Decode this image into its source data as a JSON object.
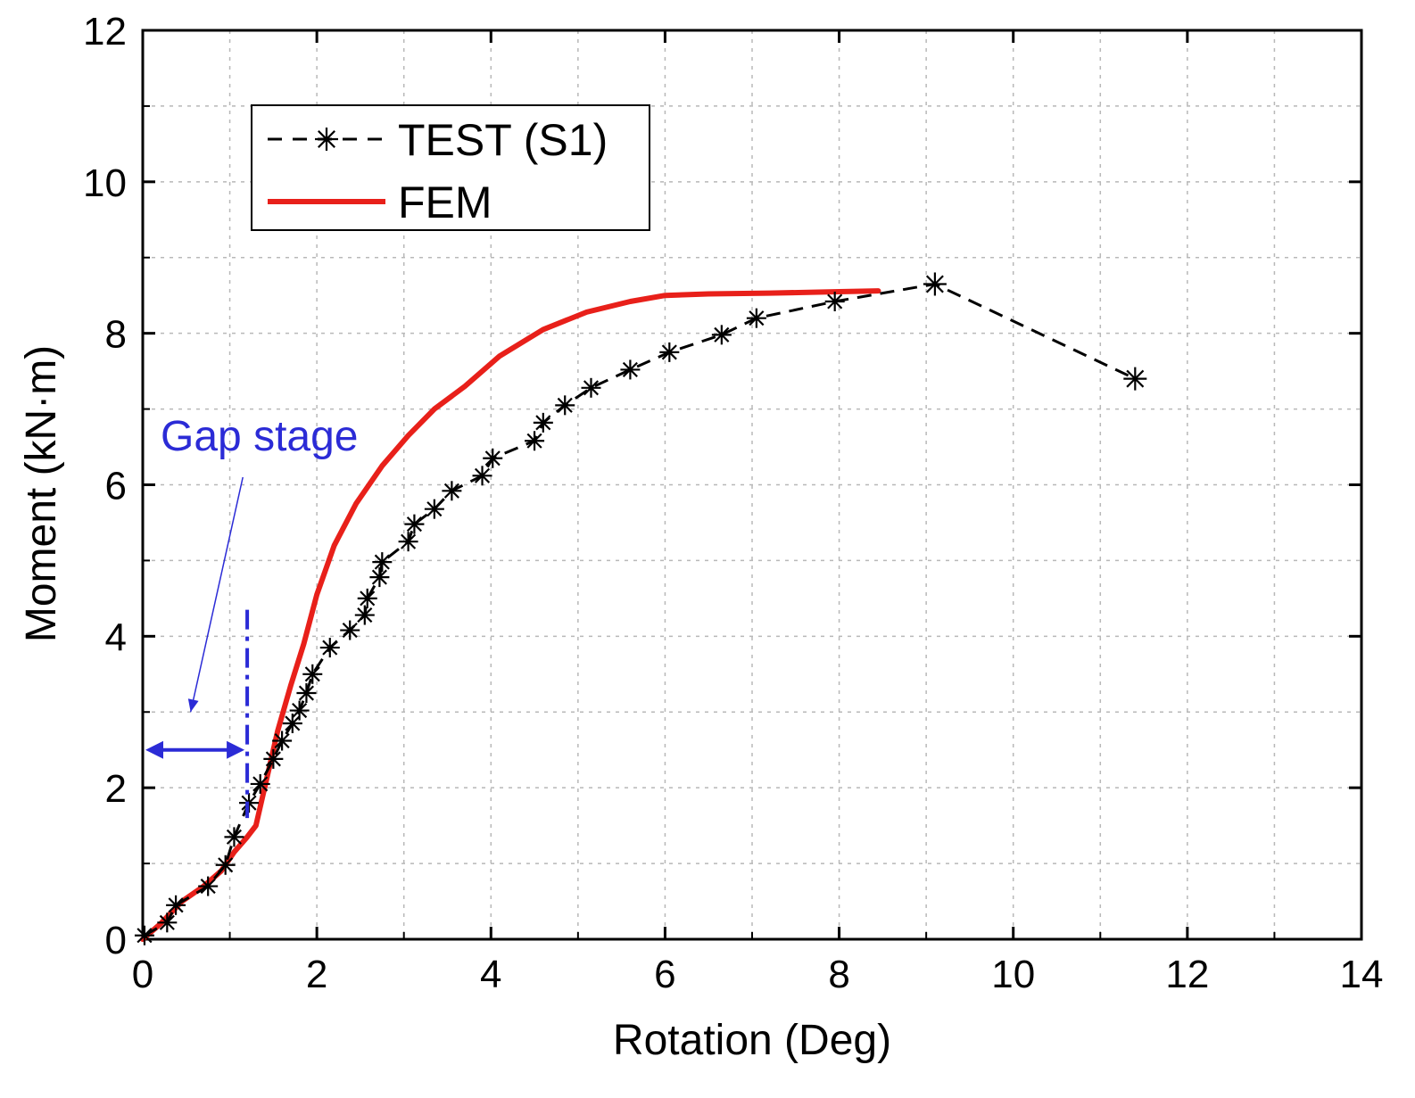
{
  "chart_data": {
    "type": "line",
    "title": "",
    "xlabel": "Rotation (Deg)",
    "ylabel": "Moment (kN·m)",
    "xlim": [
      0,
      14
    ],
    "ylim": [
      0,
      12
    ],
    "xticks": [
      0,
      2,
      4,
      6,
      8,
      10,
      12,
      14
    ],
    "yticks": [
      0,
      2,
      4,
      6,
      8,
      10,
      12
    ],
    "xtick_labels": [
      "0",
      "2",
      "4",
      "6",
      "8",
      "10",
      "12",
      "14"
    ],
    "ytick_labels": [
      "0",
      "2",
      "4",
      "6",
      "8",
      "10",
      "12"
    ],
    "grid": true,
    "legend_position": "top-left",
    "series": [
      {
        "name": "TEST (S1)",
        "style": "dashed",
        "marker": "asterisk",
        "color": "#000000",
        "x": [
          0.02,
          0.28,
          0.38,
          0.75,
          0.95,
          1.05,
          1.22,
          1.35,
          1.5,
          1.6,
          1.72,
          1.8,
          1.88,
          1.95,
          2.15,
          2.38,
          2.55,
          2.58,
          2.72,
          2.75,
          3.05,
          3.12,
          3.35,
          3.55,
          3.9,
          4.02,
          4.5,
          4.6,
          4.85,
          5.15,
          5.6,
          6.05,
          6.65,
          7.05,
          7.95,
          9.1,
          11.4
        ],
        "y": [
          0.05,
          0.22,
          0.45,
          0.7,
          0.98,
          1.35,
          1.8,
          2.05,
          2.38,
          2.62,
          2.85,
          3.02,
          3.25,
          3.5,
          3.85,
          4.08,
          4.28,
          4.5,
          4.78,
          4.98,
          5.25,
          5.48,
          5.68,
          5.92,
          6.12,
          6.35,
          6.58,
          6.82,
          7.05,
          7.28,
          7.52,
          7.75,
          7.98,
          8.2,
          8.42,
          8.65,
          7.4
        ]
      },
      {
        "name": "FEM",
        "style": "solid",
        "marker": "none",
        "color": "#e8201a",
        "x": [
          0,
          0.2,
          0.45,
          0.7,
          0.9,
          1.05,
          1.2,
          1.3,
          1.42,
          1.55,
          1.7,
          1.85,
          2.0,
          2.2,
          2.45,
          2.75,
          3.05,
          3.35,
          3.7,
          4.1,
          4.6,
          5.1,
          5.6,
          6.0,
          6.5,
          7.2,
          8.0,
          8.45
        ],
        "y": [
          0,
          0.2,
          0.5,
          0.7,
          0.9,
          1.15,
          1.35,
          1.5,
          2.1,
          2.75,
          3.35,
          3.9,
          4.55,
          5.2,
          5.75,
          6.25,
          6.65,
          7.0,
          7.3,
          7.7,
          8.05,
          8.28,
          8.42,
          8.5,
          8.52,
          8.53,
          8.55,
          8.56
        ]
      }
    ],
    "annotations": [
      {
        "text": "Gap stage",
        "color": "#2b2bd6"
      }
    ],
    "gap_stage": {
      "x_start": 0,
      "x_end": 1.2,
      "arrow_y": 2.5,
      "dashed_line_x": 1.2,
      "dashed_line_y": [
        1.6,
        4.35
      ],
      "pointer_from": [
        1.15,
        6.1
      ],
      "pointer_to": [
        0.55,
        3.0
      ]
    }
  }
}
